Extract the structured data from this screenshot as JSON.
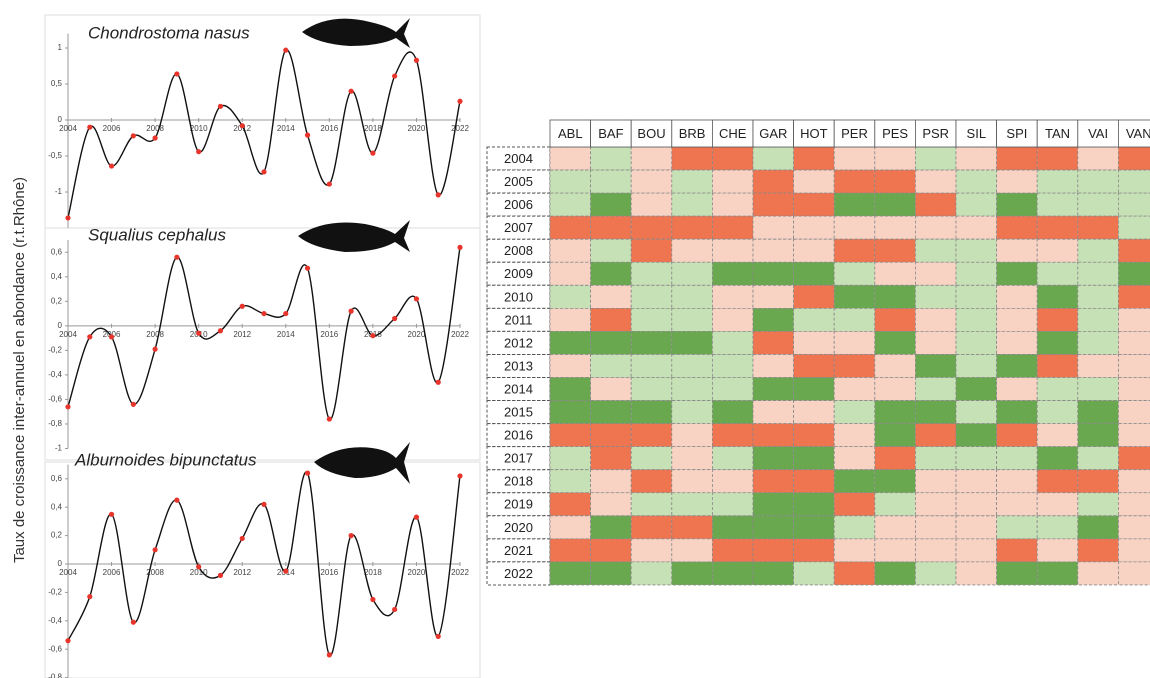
{
  "y_axis_label": "Taux de croissance inter-annuel en abondance (r.t.Rhône)",
  "chart_data": [
    {
      "type": "line",
      "title": "Chondrostoma nasus",
      "x": [
        2004,
        2005,
        2006,
        2007,
        2008,
        2009,
        2010,
        2011,
        2012,
        2013,
        2014,
        2015,
        2016,
        2017,
        2018,
        2019,
        2020,
        2021,
        2022
      ],
      "values": [
        -1.36,
        -0.1,
        -0.64,
        -0.22,
        -0.25,
        0.64,
        -0.44,
        0.19,
        -0.08,
        -0.72,
        0.97,
        -0.21,
        -0.89,
        0.4,
        -0.46,
        0.61,
        0.83,
        -1.04,
        0.26
      ],
      "xlim": [
        2004,
        2022
      ],
      "xticks": [
        2004,
        2006,
        2008,
        2010,
        2012,
        2014,
        2016,
        2018,
        2020,
        2022
      ],
      "ylim": [
        -1.5,
        1.2
      ],
      "yticks": [
        -1,
        {
          "value": -0.5,
          "label": "-0,5"
        },
        0,
        {
          "value": 0.5,
          "label": "0,5"
        },
        1
      ],
      "line_color": "#111111",
      "marker_color": "#e8352c"
    },
    {
      "type": "line",
      "title": "Squalius cephalus",
      "x": [
        2004,
        2005,
        2006,
        2007,
        2008,
        2009,
        2010,
        2011,
        2012,
        2013,
        2014,
        2015,
        2016,
        2017,
        2018,
        2019,
        2020,
        2021,
        2022
      ],
      "values": [
        -0.66,
        -0.09,
        -0.09,
        -0.64,
        -0.19,
        0.56,
        -0.06,
        -0.04,
        0.16,
        0.1,
        0.1,
        0.47,
        -0.76,
        0.12,
        -0.08,
        0.06,
        0.22,
        -0.46,
        0.64
      ],
      "xlim": [
        2004,
        2022
      ],
      "xticks": [
        2004,
        2006,
        2008,
        2010,
        2012,
        2014,
        2016,
        2018,
        2020,
        2022
      ],
      "ylim": [
        -1,
        0.7
      ],
      "yticks": [
        -1,
        {
          "value": -0.8,
          "label": "-0,8"
        },
        {
          "value": -0.6,
          "label": "-0,6"
        },
        {
          "value": -0.4,
          "label": "-0,4"
        },
        {
          "value": -0.2,
          "label": "-0,2"
        },
        0,
        {
          "value": 0.2,
          "label": "0,2"
        },
        {
          "value": 0.4,
          "label": "0,4"
        },
        {
          "value": 0.6,
          "label": "0,6"
        }
      ],
      "line_color": "#111111",
      "marker_color": "#e8352c"
    },
    {
      "type": "line",
      "title": "Alburnoides bipunctatus",
      "x": [
        2004,
        2005,
        2006,
        2007,
        2008,
        2009,
        2010,
        2011,
        2012,
        2013,
        2014,
        2015,
        2016,
        2017,
        2018,
        2019,
        2020,
        2021,
        2022
      ],
      "values": [
        -0.54,
        -0.23,
        0.35,
        -0.41,
        0.1,
        0.45,
        -0.02,
        -0.08,
        0.18,
        0.42,
        -0.05,
        0.64,
        -0.64,
        0.2,
        -0.25,
        -0.32,
        0.33,
        -0.51,
        0.62
      ],
      "xlim": [
        2004,
        2022
      ],
      "xticks": [
        2004,
        2006,
        2008,
        2010,
        2012,
        2014,
        2016,
        2018,
        2020,
        2022
      ],
      "ylim": [
        -0.8,
        0.7
      ],
      "yticks": [
        {
          "value": -0.8,
          "label": "-0,8"
        },
        {
          "value": -0.6,
          "label": "-0,6"
        },
        {
          "value": -0.4,
          "label": "-0,4"
        },
        {
          "value": -0.2,
          "label": "-0,2"
        },
        0,
        {
          "value": 0.2,
          "label": "0,2"
        },
        {
          "value": 0.4,
          "label": "0,4"
        },
        {
          "value": 0.6,
          "label": "0,6"
        }
      ],
      "line_color": "#111111",
      "marker_color": "#e8352c"
    },
    {
      "type": "heatmap",
      "columns": [
        "ABL",
        "BAF",
        "BOU",
        "BRB",
        "CHE",
        "GAR",
        "HOT",
        "PER",
        "PES",
        "PSR",
        "SIL",
        "SPI",
        "TAN",
        "VAI",
        "VAN"
      ],
      "rows": [
        "2004",
        "2005",
        "2006",
        "2007",
        "2008",
        "2009",
        "2010",
        "2011",
        "2012",
        "2013",
        "2014",
        "2015",
        "2016",
        "2017",
        "2018",
        "2019",
        "2020",
        "2021",
        "2022"
      ],
      "colors": {
        "-2": "#ef7450",
        "-1": "#f8d3c4",
        "1": "#c7e1b6",
        "2": "#6aa84f"
      },
      "values": [
        [
          -1,
          1,
          -1,
          -2,
          -2,
          1,
          -2,
          -1,
          -1,
          1,
          -1,
          -2,
          -2,
          -1,
          -2
        ],
        [
          1,
          1,
          -1,
          1,
          -1,
          -2,
          -1,
          -2,
          -2,
          -1,
          1,
          -1,
          1,
          1,
          1
        ],
        [
          1,
          2,
          -1,
          1,
          -1,
          -2,
          -2,
          2,
          2,
          -2,
          1,
          2,
          1,
          1,
          1
        ],
        [
          -2,
          -2,
          -2,
          -2,
          -2,
          -1,
          -1,
          -1,
          -1,
          -1,
          -1,
          -2,
          -2,
          -2,
          1
        ],
        [
          -1,
          1,
          -2,
          -1,
          -1,
          -1,
          -1,
          -2,
          -2,
          1,
          1,
          -1,
          -1,
          1,
          -2
        ],
        [
          -1,
          2,
          1,
          1,
          2,
          2,
          2,
          1,
          -1,
          -1,
          1,
          2,
          1,
          1,
          2
        ],
        [
          1,
          -1,
          1,
          1,
          -1,
          -1,
          -2,
          2,
          2,
          1,
          1,
          -1,
          2,
          1,
          -2
        ],
        [
          -1,
          -2,
          1,
          1,
          -1,
          2,
          1,
          1,
          -2,
          -1,
          1,
          -1,
          -2,
          1,
          -1
        ],
        [
          2,
          2,
          2,
          2,
          1,
          -2,
          -1,
          -1,
          2,
          -1,
          1,
          -1,
          2,
          1,
          -1
        ],
        [
          -1,
          1,
          1,
          1,
          1,
          -1,
          -2,
          -2,
          -1,
          2,
          1,
          2,
          -2,
          -1,
          -1
        ],
        [
          2,
          -1,
          1,
          1,
          1,
          2,
          2,
          -1,
          -1,
          1,
          2,
          -1,
          1,
          1,
          -1
        ],
        [
          2,
          2,
          2,
          1,
          2,
          -1,
          -1,
          1,
          2,
          2,
          1,
          2,
          1,
          2,
          -1
        ],
        [
          -2,
          -2,
          -2,
          -1,
          -2,
          -2,
          -2,
          -1,
          2,
          -2,
          2,
          -2,
          -1,
          2,
          -1
        ],
        [
          1,
          -2,
          1,
          -1,
          1,
          2,
          2,
          -1,
          -2,
          1,
          1,
          1,
          2,
          1,
          -2
        ],
        [
          1,
          -1,
          -2,
          -1,
          -1,
          -2,
          -2,
          2,
          2,
          -1,
          -1,
          -1,
          -2,
          -2,
          -1
        ],
        [
          -2,
          -1,
          1,
          1,
          1,
          2,
          2,
          -2,
          1,
          -1,
          -1,
          -1,
          -1,
          1,
          -1
        ],
        [
          -1,
          2,
          -2,
          -2,
          2,
          2,
          2,
          1,
          -1,
          -1,
          -1,
          1,
          1,
          2,
          -1
        ],
        [
          -2,
          -2,
          -1,
          -1,
          -2,
          -2,
          -2,
          -1,
          -1,
          -1,
          -1,
          -2,
          -1,
          -2,
          -1
        ],
        [
          2,
          2,
          1,
          2,
          2,
          2,
          1,
          -2,
          2,
          1,
          -1,
          2,
          2,
          -1,
          -1
        ]
      ]
    }
  ]
}
